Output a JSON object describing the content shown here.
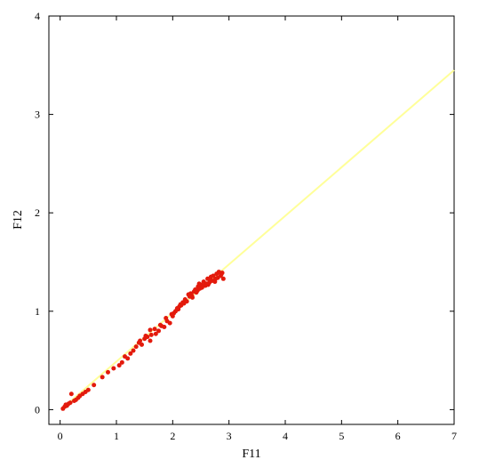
{
  "chart_data": {
    "type": "scatter",
    "title": "",
    "xlabel": "F11",
    "ylabel": "F12",
    "xlim": [
      -0.2,
      7.0
    ],
    "ylim": [
      -0.15,
      4.0
    ],
    "x_ticks": [
      0,
      1,
      2,
      3,
      4,
      5,
      6,
      7
    ],
    "y_ticks": [
      0,
      1,
      2,
      3,
      4
    ],
    "grid": false,
    "legend": "none",
    "colors": {
      "points": "#e31a0c",
      "fit_line": "#ffff99",
      "axes": "#000000"
    },
    "fit_line": {
      "x": [
        0.05,
        7.0
      ],
      "y": [
        0.02,
        3.45
      ]
    },
    "series": [
      {
        "values": [
          [
            0.05,
            0.01
          ],
          [
            0.08,
            0.03
          ],
          [
            0.1,
            0.05
          ],
          [
            0.12,
            0.04
          ],
          [
            0.15,
            0.06
          ],
          [
            0.18,
            0.07
          ],
          [
            0.2,
            0.16
          ],
          [
            0.25,
            0.09
          ],
          [
            0.28,
            0.1
          ],
          [
            0.32,
            0.12
          ],
          [
            0.35,
            0.14
          ],
          [
            0.4,
            0.16
          ],
          [
            0.45,
            0.18
          ],
          [
            0.5,
            0.2
          ],
          [
            0.6,
            0.25
          ],
          [
            0.75,
            0.33
          ],
          [
            0.85,
            0.38
          ],
          [
            0.95,
            0.42
          ],
          [
            1.05,
            0.45
          ],
          [
            1.1,
            0.48
          ],
          [
            1.15,
            0.54
          ],
          [
            1.2,
            0.52
          ],
          [
            1.25,
            0.57
          ],
          [
            1.3,
            0.6
          ],
          [
            1.35,
            0.64
          ],
          [
            1.4,
            0.68
          ],
          [
            1.45,
            0.66
          ],
          [
            1.5,
            0.72
          ],
          [
            1.55,
            0.74
          ],
          [
            1.6,
            0.7
          ],
          [
            1.62,
            0.76
          ],
          [
            1.7,
            0.77
          ],
          [
            1.75,
            0.8
          ],
          [
            1.8,
            0.85
          ],
          [
            1.85,
            0.84
          ],
          [
            1.9,
            0.9
          ],
          [
            1.95,
            0.88
          ],
          [
            2.0,
            0.95
          ],
          [
            2.02,
            0.98
          ],
          [
            2.05,
            1.0
          ],
          [
            2.1,
            1.02
          ],
          [
            2.12,
            1.05
          ],
          [
            2.15,
            1.06
          ],
          [
            2.2,
            1.08
          ],
          [
            2.22,
            1.12
          ],
          [
            2.25,
            1.1
          ],
          [
            2.3,
            1.15
          ],
          [
            2.32,
            1.18
          ],
          [
            2.35,
            1.14
          ],
          [
            2.38,
            1.2
          ],
          [
            2.4,
            1.22
          ],
          [
            2.42,
            1.19
          ],
          [
            2.45,
            1.25
          ],
          [
            2.48,
            1.23
          ],
          [
            2.5,
            1.27
          ],
          [
            2.52,
            1.24
          ],
          [
            2.55,
            1.3
          ],
          [
            2.58,
            1.26
          ],
          [
            2.6,
            1.28
          ],
          [
            2.62,
            1.33
          ],
          [
            2.65,
            1.29
          ],
          [
            2.68,
            1.35
          ],
          [
            2.7,
            1.31
          ],
          [
            2.72,
            1.36
          ],
          [
            2.75,
            1.3
          ],
          [
            2.78,
            1.38
          ],
          [
            2.8,
            1.34
          ],
          [
            2.82,
            1.4
          ],
          [
            2.85,
            1.36
          ],
          [
            2.88,
            1.39
          ],
          [
            2.9,
            1.33
          ],
          [
            1.6,
            0.81
          ],
          [
            1.88,
            0.93
          ],
          [
            2.08,
            1.03
          ],
          [
            2.18,
            1.09
          ],
          [
            2.28,
            1.17
          ],
          [
            2.44,
            1.21
          ],
          [
            2.56,
            1.26
          ],
          [
            2.66,
            1.32
          ],
          [
            2.76,
            1.33
          ],
          [
            2.86,
            1.37
          ],
          [
            1.42,
            0.7
          ],
          [
            1.52,
            0.75
          ],
          [
            1.68,
            0.82
          ],
          [
            1.78,
            0.86
          ],
          [
            1.98,
            0.97
          ],
          [
            2.14,
            1.07
          ],
          [
            2.34,
            1.16
          ],
          [
            2.47,
            1.28
          ],
          [
            2.63,
            1.27
          ]
        ]
      }
    ]
  }
}
